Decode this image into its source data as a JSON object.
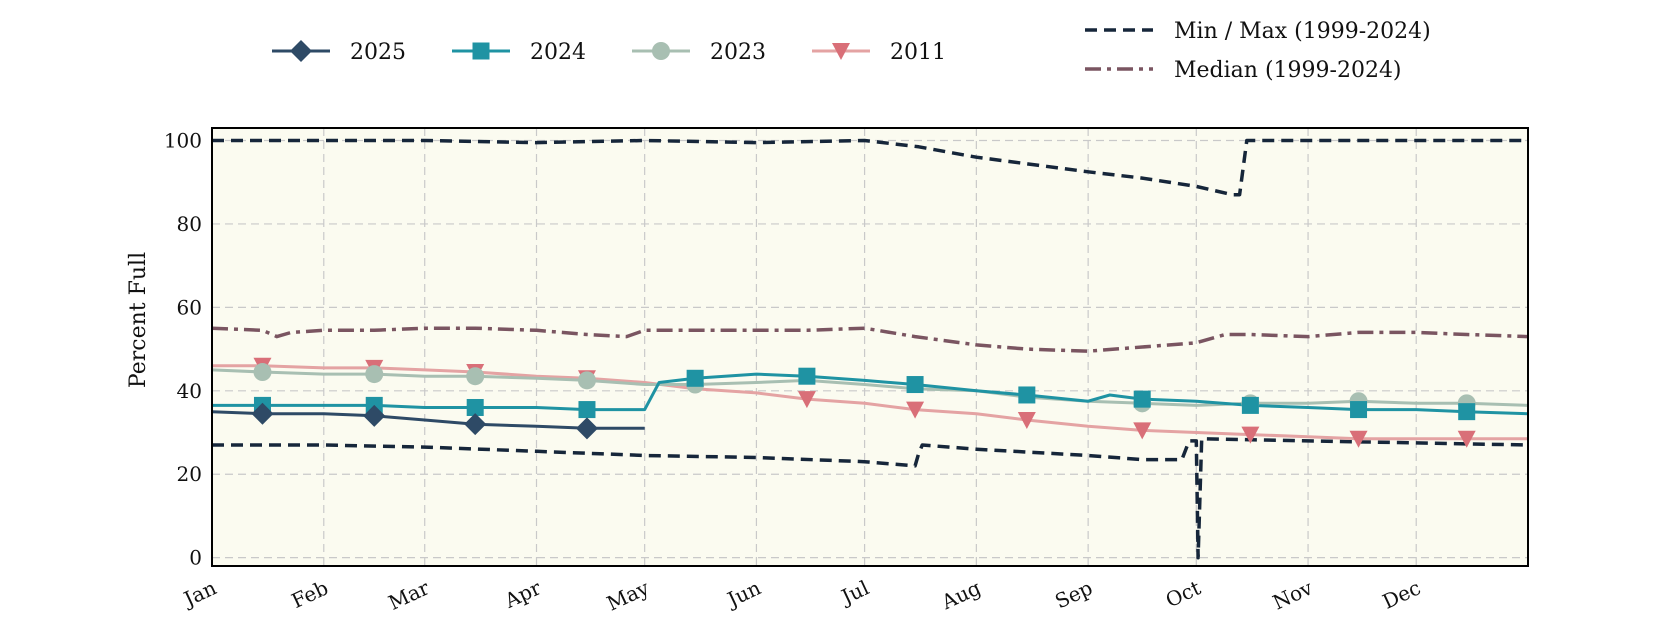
{
  "chart_data": {
    "type": "line",
    "title": "",
    "xlabel": "",
    "ylabel": "Percent Full",
    "ylim": [
      -2,
      103
    ],
    "xlim": [
      0,
      365
    ],
    "grid": true,
    "legend": [
      "top-left",
      "top-right"
    ],
    "x_ticks": [
      {
        "label": "Jan",
        "x": 0
      },
      {
        "label": "Feb",
        "x": 31
      },
      {
        "label": "Mar",
        "x": 59
      },
      {
        "label": "Apr",
        "x": 90
      },
      {
        "label": "May",
        "x": 120
      },
      {
        "label": "Jun",
        "x": 151
      },
      {
        "label": "Jul",
        "x": 181
      },
      {
        "label": "Aug",
        "x": 212
      },
      {
        "label": "Sep",
        "x": 243
      },
      {
        "label": "Oct",
        "x": 273
      },
      {
        "label": "Nov",
        "x": 304
      },
      {
        "label": "Dec",
        "x": 334
      }
    ],
    "y_ticks": [
      0,
      20,
      40,
      60,
      80,
      100
    ],
    "band_color": "#fbfbf0",
    "series": [
      {
        "name": "2025",
        "color": "#2e4a66",
        "marker": "diamond",
        "dash": "solid",
        "width": 3,
        "x": [
          0,
          14,
          31,
          45,
          59,
          73,
          90,
          104,
          120
        ],
        "y": [
          35,
          34.5,
          34.5,
          34,
          33,
          32,
          31.5,
          31,
          31
        ],
        "marker_x": [
          14,
          45,
          73,
          104
        ]
      },
      {
        "name": "2024",
        "color": "#1f93a3",
        "marker": "square",
        "dash": "solid",
        "width": 3,
        "x": [
          0,
          14,
          31,
          45,
          59,
          73,
          90,
          104,
          115,
          120,
          124,
          134,
          151,
          165,
          181,
          195,
          212,
          226,
          243,
          249,
          258,
          273,
          288,
          304,
          318,
          334,
          348,
          365
        ],
        "y": [
          36.5,
          36.5,
          36.5,
          36.5,
          36,
          36,
          36,
          35.5,
          35.5,
          35.5,
          42,
          43,
          44,
          43.5,
          42.5,
          41.5,
          40,
          39,
          37.5,
          39,
          38,
          37.5,
          36.5,
          36,
          35.5,
          35.5,
          35,
          34.5
        ],
        "marker_x": [
          14,
          45,
          73,
          104,
          134,
          165,
          195,
          226,
          258,
          288,
          318,
          348
        ]
      },
      {
        "name": "2023",
        "color": "#a8bfb2",
        "marker": "circle",
        "dash": "solid",
        "width": 3,
        "x": [
          0,
          14,
          31,
          45,
          59,
          73,
          90,
          104,
          120,
          134,
          151,
          165,
          181,
          195,
          212,
          226,
          243,
          258,
          273,
          288,
          304,
          318,
          334,
          348,
          365
        ],
        "y": [
          45,
          44.5,
          44,
          44,
          43.5,
          43.5,
          43,
          42.5,
          41.5,
          41.5,
          42,
          42.5,
          41.5,
          40.5,
          40,
          38.5,
          37.5,
          37,
          36.5,
          37,
          37,
          37.5,
          37,
          37,
          36.5
        ],
        "marker_x": [
          14,
          45,
          73,
          104,
          134,
          258,
          288,
          318,
          348
        ]
      },
      {
        "name": "2011",
        "color": "#d96f78",
        "line_color": "#e4a3a3",
        "marker": "triangle-down",
        "dash": "solid",
        "width": 3,
        "x": [
          0,
          14,
          31,
          45,
          59,
          73,
          90,
          104,
          120,
          134,
          151,
          165,
          181,
          195,
          212,
          226,
          243,
          258,
          273,
          288,
          304,
          318,
          334,
          348,
          365
        ],
        "y": [
          46,
          46,
          45.5,
          45.5,
          45,
          44.5,
          43.5,
          43,
          42,
          40.5,
          39.5,
          38,
          37,
          35.5,
          34.5,
          33,
          31.5,
          30.5,
          30,
          29.5,
          29,
          28.5,
          28.5,
          28.5,
          28.5
        ],
        "marker_x": [
          14,
          45,
          73,
          104,
          165,
          195,
          226,
          258,
          288,
          318,
          348
        ]
      },
      {
        "name": "Median (1999-2024)",
        "color": "#7a5561",
        "marker": "none",
        "dash": "dashdot",
        "width": 3.5,
        "x": [
          0,
          14,
          18,
          22,
          31,
          45,
          59,
          73,
          90,
          104,
          115,
          120,
          134,
          151,
          165,
          181,
          195,
          212,
          226,
          243,
          258,
          273,
          281,
          288,
          304,
          318,
          334,
          348,
          365
        ],
        "y": [
          55,
          54.5,
          53,
          54,
          54.5,
          54.5,
          55,
          55,
          54.5,
          53.5,
          53,
          54.5,
          54.5,
          54.5,
          54.5,
          55,
          53,
          51,
          50,
          49.5,
          50.5,
          51.5,
          53.5,
          53.5,
          53,
          54,
          54,
          53.5,
          53
        ]
      }
    ],
    "min_max": {
      "name": "Min / Max (1999-2024)",
      "color": "#16263a",
      "dash": "dashed",
      "width": 3.5,
      "max": {
        "x": [
          0,
          31,
          59,
          90,
          120,
          151,
          181,
          196,
          212,
          243,
          258,
          273,
          283,
          285,
          287,
          304,
          334,
          365
        ],
        "y": [
          100,
          100,
          100,
          99.5,
          100,
          99.5,
          100,
          98.5,
          96,
          92.5,
          91,
          89,
          87,
          87,
          100,
          100,
          100,
          100
        ]
      },
      "min": {
        "x": [
          0,
          31,
          59,
          90,
          120,
          151,
          181,
          195,
          196,
          197,
          212,
          243,
          258,
          269,
          271,
          273,
          273.5,
          274.5,
          304,
          334,
          365
        ],
        "y": [
          27,
          27,
          26.5,
          25.5,
          24.5,
          24,
          23,
          22,
          25,
          27,
          26,
          24.5,
          23.5,
          23.5,
          28,
          28,
          0,
          28.5,
          28,
          27.5,
          27
        ]
      }
    }
  }
}
